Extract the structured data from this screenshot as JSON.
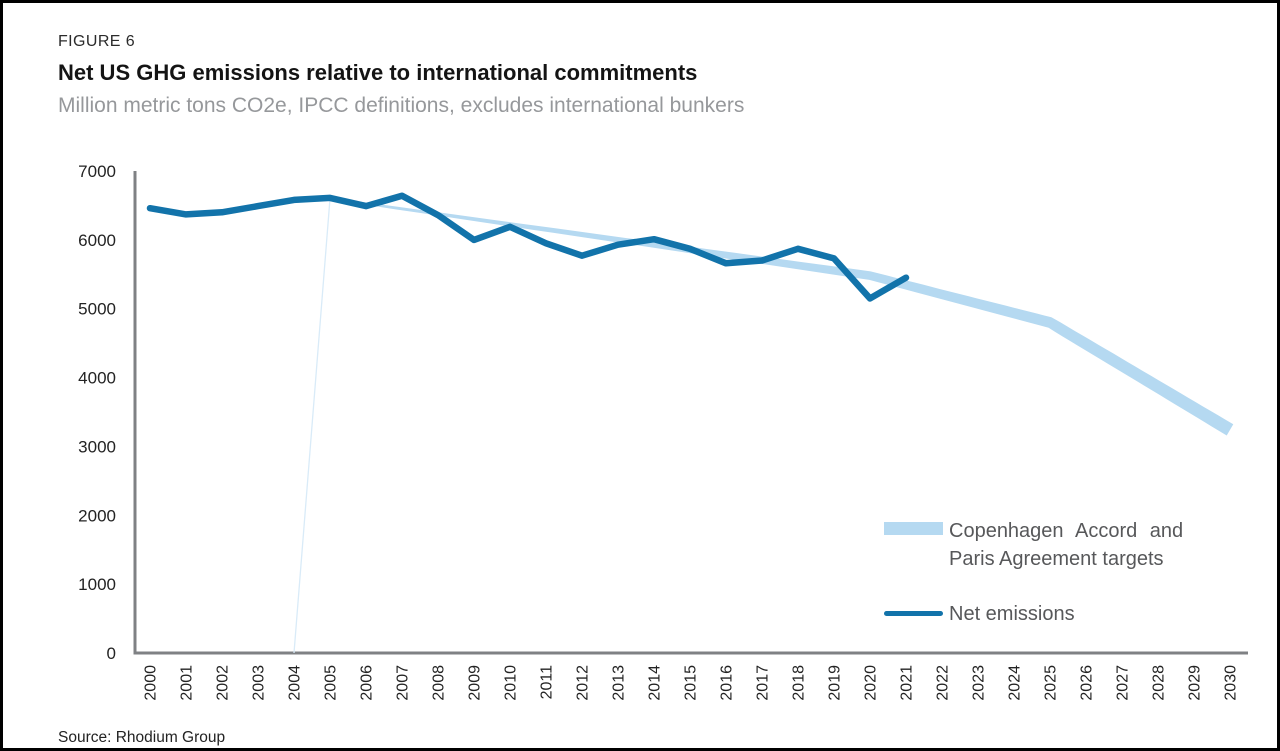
{
  "figure_label": "FIGURE 6",
  "title": "Net US GHG emissions relative to international commitments",
  "subtitle": "Million metric tons CO2e, IPCC definitions, excludes international bunkers",
  "source": "Source: Rhodium Group",
  "legend": {
    "target_label_line1": "Copenhagen Accord and",
    "target_label_line2": "Paris Agreement targets",
    "net_label": "Net emissions"
  },
  "colors": {
    "net_line": "#1273aa",
    "target_line": "#b5d9f1",
    "target_connector": "#d9ebf8",
    "axis": "#7f8184",
    "tick_text": "#232323"
  },
  "chart_data": {
    "type": "line",
    "title": "Net US GHG emissions relative to international commitments",
    "subtitle": "Million metric tons CO2e, IPCC definitions, excludes international bunkers",
    "xlabel": "",
    "ylabel": "Million metric tons CO2e",
    "xlim": [
      2000,
      2030
    ],
    "ylim": [
      0,
      7000
    ],
    "y_ticks": [
      0,
      1000,
      2000,
      3000,
      4000,
      5000,
      6000,
      7000
    ],
    "x_ticks": [
      2000,
      2001,
      2002,
      2003,
      2004,
      2005,
      2006,
      2007,
      2008,
      2009,
      2010,
      2011,
      2012,
      2013,
      2014,
      2015,
      2016,
      2017,
      2018,
      2019,
      2020,
      2021,
      2022,
      2023,
      2024,
      2025,
      2026,
      2027,
      2028,
      2029,
      2030
    ],
    "grid": false,
    "legend_position": "lower-right",
    "series": [
      {
        "name": "Copenhagen Accord and Paris Agreement targets",
        "style": "tapered-line",
        "color": "#b5d9f1",
        "connector_from": [
          2004,
          0
        ],
        "points": [
          [
            2005,
            6600
          ],
          [
            2020,
            5480
          ],
          [
            2025,
            4800
          ],
          [
            2030,
            3240
          ]
        ]
      },
      {
        "name": "Net emissions",
        "style": "line",
        "color": "#1273aa",
        "x": [
          2000,
          2001,
          2002,
          2003,
          2004,
          2005,
          2006,
          2007,
          2008,
          2009,
          2010,
          2011,
          2012,
          2013,
          2014,
          2015,
          2016,
          2017,
          2018,
          2019,
          2020,
          2021
        ],
        "values": [
          6460,
          6370,
          6400,
          6490,
          6580,
          6610,
          6490,
          6640,
          6360,
          6000,
          6190,
          5950,
          5770,
          5930,
          6010,
          5870,
          5660,
          5700,
          5870,
          5730,
          5150,
          5450
        ]
      }
    ]
  }
}
